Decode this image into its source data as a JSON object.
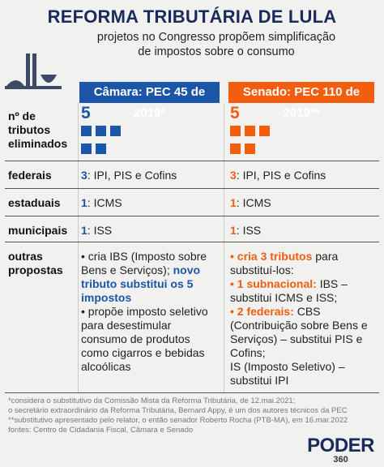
{
  "header": {
    "title": "REFORMA TRIBUTÁRIA DE LULA",
    "subtitle": [
      "projetos no Congresso propõem simplificação",
      "de impostos sobre o consumo"
    ]
  },
  "table": {
    "columns": [
      {
        "title": "Câmara: PEC 45 de 2019*",
        "color": "#1c56a8"
      },
      {
        "title": "Senado: PEC 110 de 2019**",
        "color": "#f25d0e"
      }
    ],
    "rows": [
      {
        "label": "nº de tributos eliminados",
        "cells": [
          {
            "count": 5
          },
          {
            "count": 5
          }
        ]
      },
      {
        "label": "federais",
        "cells": [
          [
            [
              {
                "text": "3",
                "bold": true
              },
              {
                "text": ": IPI, PIS e Cofins"
              }
            ]
          ],
          [
            [
              {
                "text": "3",
                "bold": true
              },
              {
                "text": ": IPI, PIS e Cofins"
              }
            ]
          ]
        ]
      },
      {
        "label": "estaduais",
        "cells": [
          [
            [
              {
                "text": "1",
                "bold": true
              },
              {
                "text": ": ICMS"
              }
            ]
          ],
          [
            [
              {
                "text": "1",
                "bold": true
              },
              {
                "text": ": ICMS"
              }
            ]
          ]
        ]
      },
      {
        "label": "municipais",
        "cells": [
          [
            [
              {
                "text": "1",
                "bold": true
              },
              {
                "text": ": ISS"
              }
            ]
          ],
          [
            [
              {
                "text": "1",
                "bold": true
              },
              {
                "text": ": ISS"
              }
            ]
          ]
        ]
      },
      {
        "label": "outras propostas",
        "cells": [
          [
            [
              {
                "text": "• cria IBS (Imposto sobre Bens e Serviços); "
              },
              {
                "text": "novo tributo substitui os 5 impostos",
                "bold": true
              }
            ],
            [
              {
                "text": "• propõe imposto seletivo para desestimular consumo de produtos como cigarros e bebidas alcoólicas"
              }
            ]
          ],
          [
            [
              {
                "text": "• cria 3 tributos",
                "bold": true
              },
              {
                "text": " para substituí-los:"
              }
            ],
            [
              {
                "text": "• 1 subnacional:",
                "bold": true
              },
              {
                "text": " IBS – substitui ICMS e ISS;"
              }
            ],
            [
              {
                "text": "• 2 federais:",
                "bold": true
              },
              {
                "text": " CBS (Contribuição sobre Bens e Serviços) – substitui PIS e Cofins;"
              }
            ],
            [
              {
                "text": "IS (Imposto Seletivo) – substitui IPI"
              }
            ]
          ]
        ]
      }
    ]
  },
  "footnotes": [
    "*considera o substitutivo da Comissão Mista da Reforma Tributária, de 12.mai.2021;",
    "o secretário extraordinário da Reforma Tributária, Bernard Appy, é um dos autores técnicos da PEC",
    "**substitutivo apresentado pelo relator, o então senador Roberto Rocha (PTB-MA), em 16.mar.2022",
    "fontes: Centro de Cidadania Fiscal, Câmara e Senado"
  ],
  "footer": {
    "brand": "PODER",
    "number": "360"
  }
}
